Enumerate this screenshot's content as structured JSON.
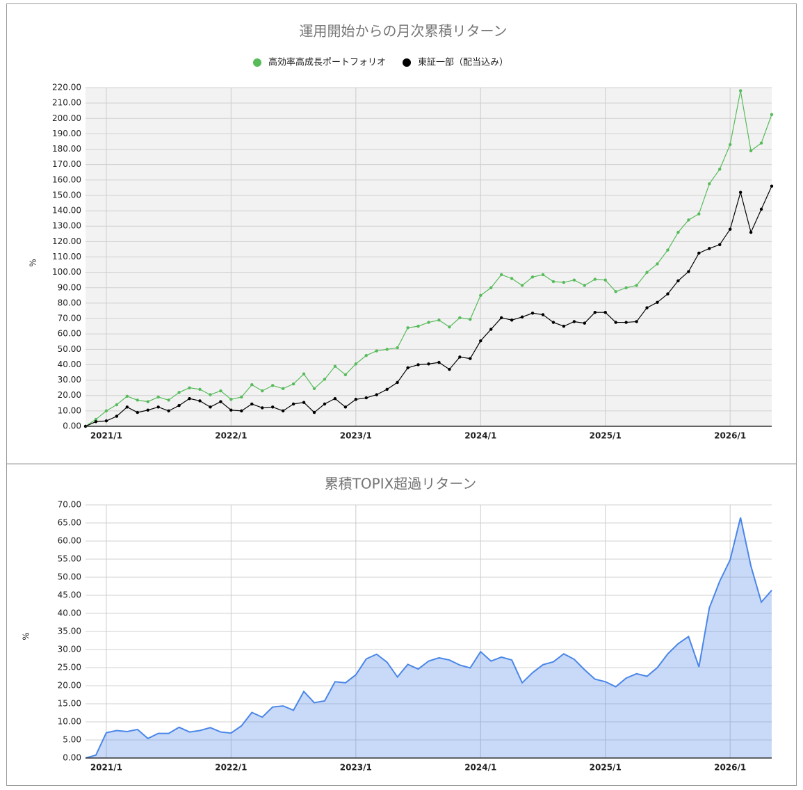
{
  "chart_data": [
    {
      "type": "line",
      "title": "運用開始からの月次累積リターン",
      "y_label": "%",
      "x": [
        null,
        null,
        "2021/1",
        null,
        null,
        null,
        null,
        null,
        null,
        null,
        null,
        null,
        null,
        null,
        "2022/1",
        null,
        null,
        null,
        null,
        null,
        null,
        null,
        null,
        null,
        null,
        null,
        "2023/1",
        null,
        null,
        null,
        null,
        null,
        null,
        null,
        null,
        null,
        null,
        null,
        "2024/1",
        null,
        null,
        null,
        null,
        null,
        null,
        null,
        null,
        null,
        null,
        null,
        "2025/1",
        null,
        null,
        null,
        null,
        null,
        null,
        null,
        null,
        null,
        null,
        null,
        "2026/1",
        null,
        null,
        null,
        null
      ],
      "series": [
        {
          "name": "高効率高成長ポートフォリオ",
          "color": "#57bb5a",
          "values": [
            0,
            4.5,
            10,
            14,
            19.5,
            17,
            16,
            19,
            17,
            22,
            25,
            24,
            20.5,
            23,
            17.5,
            19,
            27,
            23,
            26.5,
            24.5,
            27.5,
            34,
            24.5,
            30.5,
            39,
            33.5,
            40.5,
            46,
            49,
            50,
            51,
            64,
            65,
            67.5,
            69,
            64.5,
            70.5,
            69.5,
            85,
            90,
            98.5,
            96,
            91.5,
            97,
            98.5,
            94,
            93.5,
            95,
            91.5,
            95.5,
            95,
            87.5,
            90,
            91.5,
            100,
            105.5,
            114.5,
            126,
            134,
            138,
            157.5,
            167,
            183,
            218,
            179,
            184,
            202.5
          ]
        },
        {
          "name": "東証一部（配当込み）",
          "color": "#000000",
          "values": [
            0,
            3,
            3.5,
            6.5,
            12.5,
            9,
            10.5,
            12.5,
            10,
            13.5,
            18,
            16.5,
            12.5,
            16,
            10.5,
            10,
            14.5,
            12,
            12.5,
            10,
            14.5,
            15.5,
            9,
            14.5,
            18,
            12.5,
            17.5,
            18.5,
            20.5,
            24,
            28.5,
            38,
            40,
            40.5,
            41.5,
            37,
            45,
            44,
            55.5,
            63,
            70.5,
            69,
            71,
            73.5,
            72.5,
            67.5,
            65,
            68,
            67,
            74,
            74,
            67.5,
            67.5,
            68,
            77,
            80.5,
            86,
            94.5,
            100.5,
            112.5,
            115.5,
            118,
            128,
            152,
            126,
            141,
            156
          ]
        }
      ],
      "ylim": [
        0,
        220
      ],
      "yticks": [
        {
          "value": 0,
          "label": "0.00"
        },
        {
          "value": 10,
          "label": "10.00"
        },
        {
          "value": 20,
          "label": "20.00"
        },
        {
          "value": 30,
          "label": "30.00"
        },
        {
          "value": 40,
          "label": "40.00"
        },
        {
          "value": 50,
          "label": "50.00"
        },
        {
          "value": 60,
          "label": "60.00"
        },
        {
          "value": 70,
          "label": "70.00"
        },
        {
          "value": 80,
          "label": "80.00"
        },
        {
          "value": 90,
          "label": "90.00"
        },
        {
          "value": 100,
          "label": "100.00"
        },
        {
          "value": 110,
          "label": "110.00"
        },
        {
          "value": 120,
          "label": "120.00"
        },
        {
          "value": 130,
          "label": "130.00"
        },
        {
          "value": 140,
          "label": "140.00"
        },
        {
          "value": 150,
          "label": "150.00"
        },
        {
          "value": 160,
          "label": "160.00"
        },
        {
          "value": 170,
          "label": "170.00"
        },
        {
          "value": 180,
          "label": "180.00"
        },
        {
          "value": 190,
          "label": "190.00"
        },
        {
          "value": 200,
          "label": "200.00"
        },
        {
          "value": 210,
          "label": "210.00"
        },
        {
          "value": 220,
          "label": "220.00"
        }
      ],
      "grid": true,
      "legend": "top"
    },
    {
      "type": "area",
      "title": "累積TOPIX超過リターン",
      "y_label": "%",
      "x": [
        null,
        null,
        "2021/1",
        null,
        null,
        null,
        null,
        null,
        null,
        null,
        null,
        null,
        null,
        null,
        "2022/1",
        null,
        null,
        null,
        null,
        null,
        null,
        null,
        null,
        null,
        null,
        null,
        "2023/1",
        null,
        null,
        null,
        null,
        null,
        null,
        null,
        null,
        null,
        null,
        null,
        "2024/1",
        null,
        null,
        null,
        null,
        null,
        null,
        null,
        null,
        null,
        null,
        null,
        "2025/1",
        null,
        null,
        null,
        null,
        null,
        null,
        null,
        null,
        null,
        null,
        null,
        "2026/1",
        null,
        null,
        null,
        null
      ],
      "color": "#4a86e8",
      "values": [
        0,
        0.8,
        7,
        7.6,
        7.3,
        7.9,
        5.4,
        6.8,
        6.8,
        8.5,
        7.2,
        7.6,
        8.4,
        7.2,
        6.9,
        8.9,
        12.6,
        11.3,
        14.1,
        14.4,
        13.2,
        18.4,
        15.3,
        15.8,
        21.1,
        20.8,
        23,
        27.4,
        28.7,
        26.5,
        22.4,
        25.9,
        24.6,
        26.8,
        27.7,
        27.1,
        25.7,
        24.9,
        29.4,
        26.8,
        27.9,
        27.1,
        20.8,
        23.6,
        25.8,
        26.6,
        28.8,
        27.3,
        24.4,
        21.8,
        21.1,
        19.7,
        22.1,
        23.3,
        22.6,
        25,
        28.8,
        31.6,
        33.6,
        25.2,
        41.5,
        48.9,
        54.8,
        66.5,
        53.1,
        43.1,
        46.4
      ],
      "ylim": [
        0,
        70
      ],
      "yticks": [
        {
          "value": 0,
          "label": "0.00"
        },
        {
          "value": 5,
          "label": "5.00"
        },
        {
          "value": 10,
          "label": "10.00"
        },
        {
          "value": 15,
          "label": "15.00"
        },
        {
          "value": 20,
          "label": "20.00"
        },
        {
          "value": 25,
          "label": "25.00"
        },
        {
          "value": 30,
          "label": "30.00"
        },
        {
          "value": 35,
          "label": "35.00"
        },
        {
          "value": 40,
          "label": "40.00"
        },
        {
          "value": 45,
          "label": "45.00"
        },
        {
          "value": 50,
          "label": "50.00"
        },
        {
          "value": 55,
          "label": "55.00"
        },
        {
          "value": 60,
          "label": "60.00"
        },
        {
          "value": 65,
          "label": "65.00"
        },
        {
          "value": 70,
          "label": "70.00"
        }
      ],
      "grid": true
    }
  ]
}
